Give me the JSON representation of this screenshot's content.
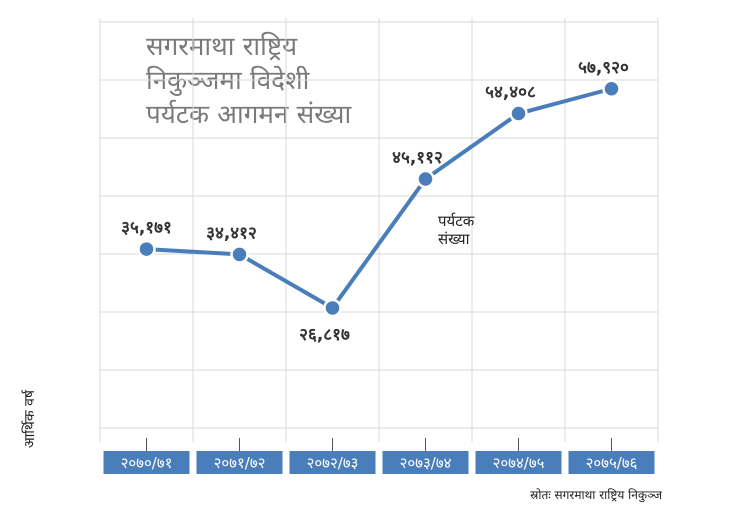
{
  "chart_data": {
    "type": "line",
    "title": "सगरमाथा राष्ट्रिय निकुञ्जमा विदेशी पर्यटक आगमन संख्या",
    "title_lines": [
      "सगरमाथा राष्ट्रिय",
      "निकुञ्जमा विदेशी",
      "पर्यटक आगमन संख्या"
    ],
    "categories": [
      "२०७०/७१",
      "२०७१/७२",
      "२०७२/७३",
      "२०७३/७४",
      "२०७४/७५",
      "२०७५/७६"
    ],
    "series": [
      {
        "name": "पर्यटक संख्या",
        "name_lines": [
          "पर्यटक",
          "संख्या"
        ],
        "values": [
          35171,
          34412,
          26817,
          45112,
          54408,
          57920
        ],
        "labels": [
          "३५,१७१",
          "३४,४१२",
          "२६,८१७",
          "४५,११२",
          "५४,४०८",
          "५७,९२०"
        ]
      }
    ],
    "xlabel": "आर्थिक वर्ष",
    "ylabel": "",
    "ylim": [
      0,
      65000
    ],
    "grid": true,
    "source": "स्रोतः सगरमाथा राष्ट्रिय निकुञ्ज",
    "colors": {
      "line": "#4a7ebb",
      "point": "#4a7ebb",
      "tick_bg": "#4a7ebb",
      "grid": "#d9d9d9"
    }
  }
}
